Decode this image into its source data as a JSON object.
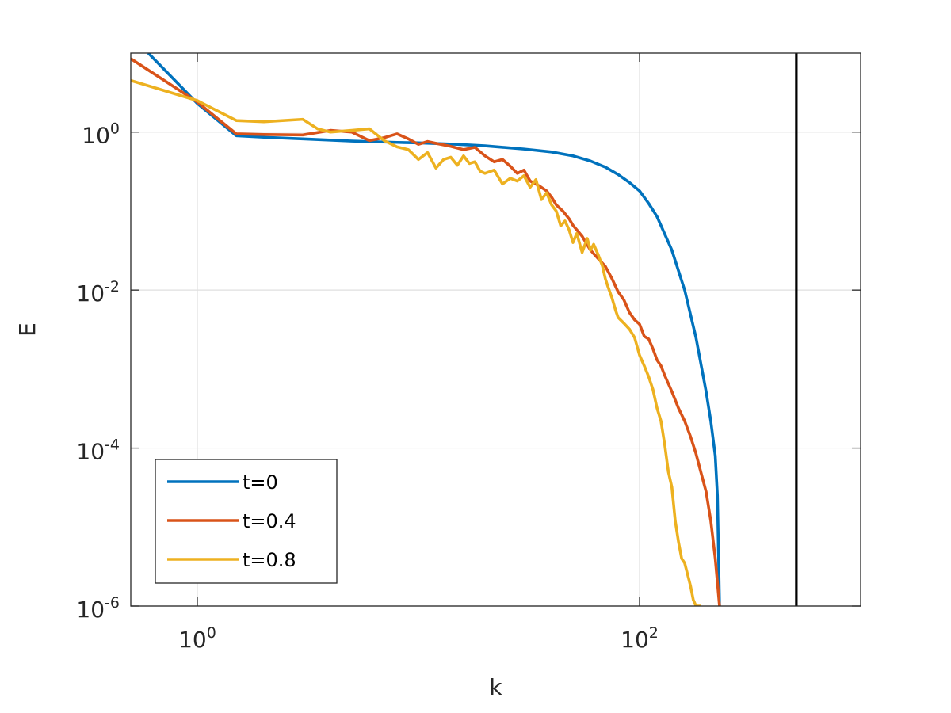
{
  "chart_data": {
    "type": "line",
    "title": "",
    "xlabel": "k",
    "ylabel": "E",
    "x_scale": "log",
    "y_scale": "log",
    "xlim": [
      0.5,
      1000
    ],
    "ylim": [
      1e-06,
      10
    ],
    "grid": true,
    "legend_position": "bottom-left",
    "x_ticks": [
      {
        "value": 1,
        "base": "10",
        "exp": "0"
      },
      {
        "value": 100,
        "base": "10",
        "exp": "2"
      }
    ],
    "y_ticks": [
      {
        "value": 1,
        "base": "10",
        "exp": "0"
      },
      {
        "value": 0.01,
        "base": "10",
        "exp": "-2"
      },
      {
        "value": 0.0001,
        "base": "10",
        "exp": "-4"
      },
      {
        "value": 1e-06,
        "base": "10",
        "exp": "-6"
      }
    ],
    "vertical_line": {
      "x": 512,
      "color": "#000000"
    },
    "series": [
      {
        "name": "t=0",
        "color": "#0072BD",
        "x": [
          0.6,
          1,
          1.5,
          2,
          3,
          5,
          8,
          10,
          15,
          20,
          30,
          40,
          50,
          60,
          70,
          80,
          90,
          100,
          110,
          120,
          140,
          160,
          180,
          200,
          210,
          220,
          225,
          230
        ],
        "y": [
          10,
          2.3,
          0.9,
          0.86,
          0.82,
          0.77,
          0.74,
          0.73,
          0.7,
          0.67,
          0.61,
          0.56,
          0.5,
          0.43,
          0.36,
          0.29,
          0.23,
          0.18,
          0.125,
          0.085,
          0.032,
          0.01,
          0.0025,
          0.00052,
          0.00022,
          8e-05,
          2.5e-05,
          1e-06
        ]
      },
      {
        "name": "t=0.4",
        "color": "#D95319",
        "x": [
          0.5,
          1,
          1.5,
          2,
          3,
          4,
          5,
          6,
          7,
          8,
          9,
          10,
          11,
          12,
          14,
          16,
          18,
          20,
          22,
          24,
          26,
          28,
          30,
          32,
          35,
          38,
          40,
          42,
          45,
          48,
          50,
          55,
          60,
          65,
          70,
          75,
          80,
          85,
          90,
          95,
          100,
          105,
          110,
          115,
          120,
          125,
          130,
          140,
          150,
          160,
          170,
          180,
          190,
          200,
          210,
          220,
          230
        ],
        "y": [
          8.5,
          2.4,
          0.95,
          0.93,
          0.92,
          1.05,
          1.0,
          0.78,
          0.85,
          0.95,
          0.82,
          0.7,
          0.76,
          0.72,
          0.66,
          0.6,
          0.64,
          0.5,
          0.42,
          0.45,
          0.37,
          0.3,
          0.33,
          0.24,
          0.21,
          0.18,
          0.15,
          0.12,
          0.1,
          0.08,
          0.066,
          0.048,
          0.032,
          0.025,
          0.02,
          0.014,
          0.0095,
          0.0075,
          0.0052,
          0.0042,
          0.0037,
          0.0026,
          0.0024,
          0.0018,
          0.0013,
          0.0011,
          0.00083,
          0.00052,
          0.00032,
          0.00022,
          0.00014,
          8.5e-05,
          4.8e-05,
          2.8e-05,
          1.2e-05,
          4e-06,
          1e-06
        ]
      },
      {
        "name": "t=0.8",
        "color": "#EDB120",
        "x": [
          0.5,
          1,
          1.5,
          2,
          3,
          3.5,
          4,
          5,
          6,
          6.5,
          7,
          8,
          9,
          10,
          11,
          12,
          13,
          14,
          15,
          16,
          17,
          18,
          19,
          20,
          22,
          24,
          26,
          28,
          30,
          32,
          34,
          36,
          38,
          40,
          42,
          44,
          46,
          48,
          50,
          52,
          55,
          58,
          60,
          62,
          65,
          68,
          70,
          72,
          75,
          78,
          80,
          85,
          90,
          95,
          100,
          105,
          110,
          115,
          120,
          125,
          130,
          135,
          140,
          145,
          150,
          155,
          160,
          165,
          170,
          175,
          180,
          190
        ],
        "y": [
          4.5,
          2.5,
          1.4,
          1.35,
          1.45,
          1.1,
          1.0,
          1.05,
          1.1,
          0.92,
          0.78,
          0.65,
          0.6,
          0.45,
          0.55,
          0.35,
          0.45,
          0.48,
          0.38,
          0.5,
          0.4,
          0.42,
          0.32,
          0.3,
          0.33,
          0.22,
          0.26,
          0.24,
          0.28,
          0.2,
          0.25,
          0.14,
          0.17,
          0.12,
          0.1,
          0.065,
          0.075,
          0.058,
          0.04,
          0.052,
          0.03,
          0.045,
          0.032,
          0.038,
          0.028,
          0.02,
          0.014,
          0.011,
          0.008,
          0.0055,
          0.0045,
          0.0038,
          0.0032,
          0.0025,
          0.0015,
          0.0011,
          0.0008,
          0.00055,
          0.00032,
          0.00022,
          0.00011,
          5e-05,
          3.2e-05,
          1.2e-05,
          6.5e-06,
          4e-06,
          3.5e-06,
          2.5e-06,
          1.8e-06,
          1.2e-06,
          1e-06,
          1e-06
        ]
      }
    ]
  }
}
